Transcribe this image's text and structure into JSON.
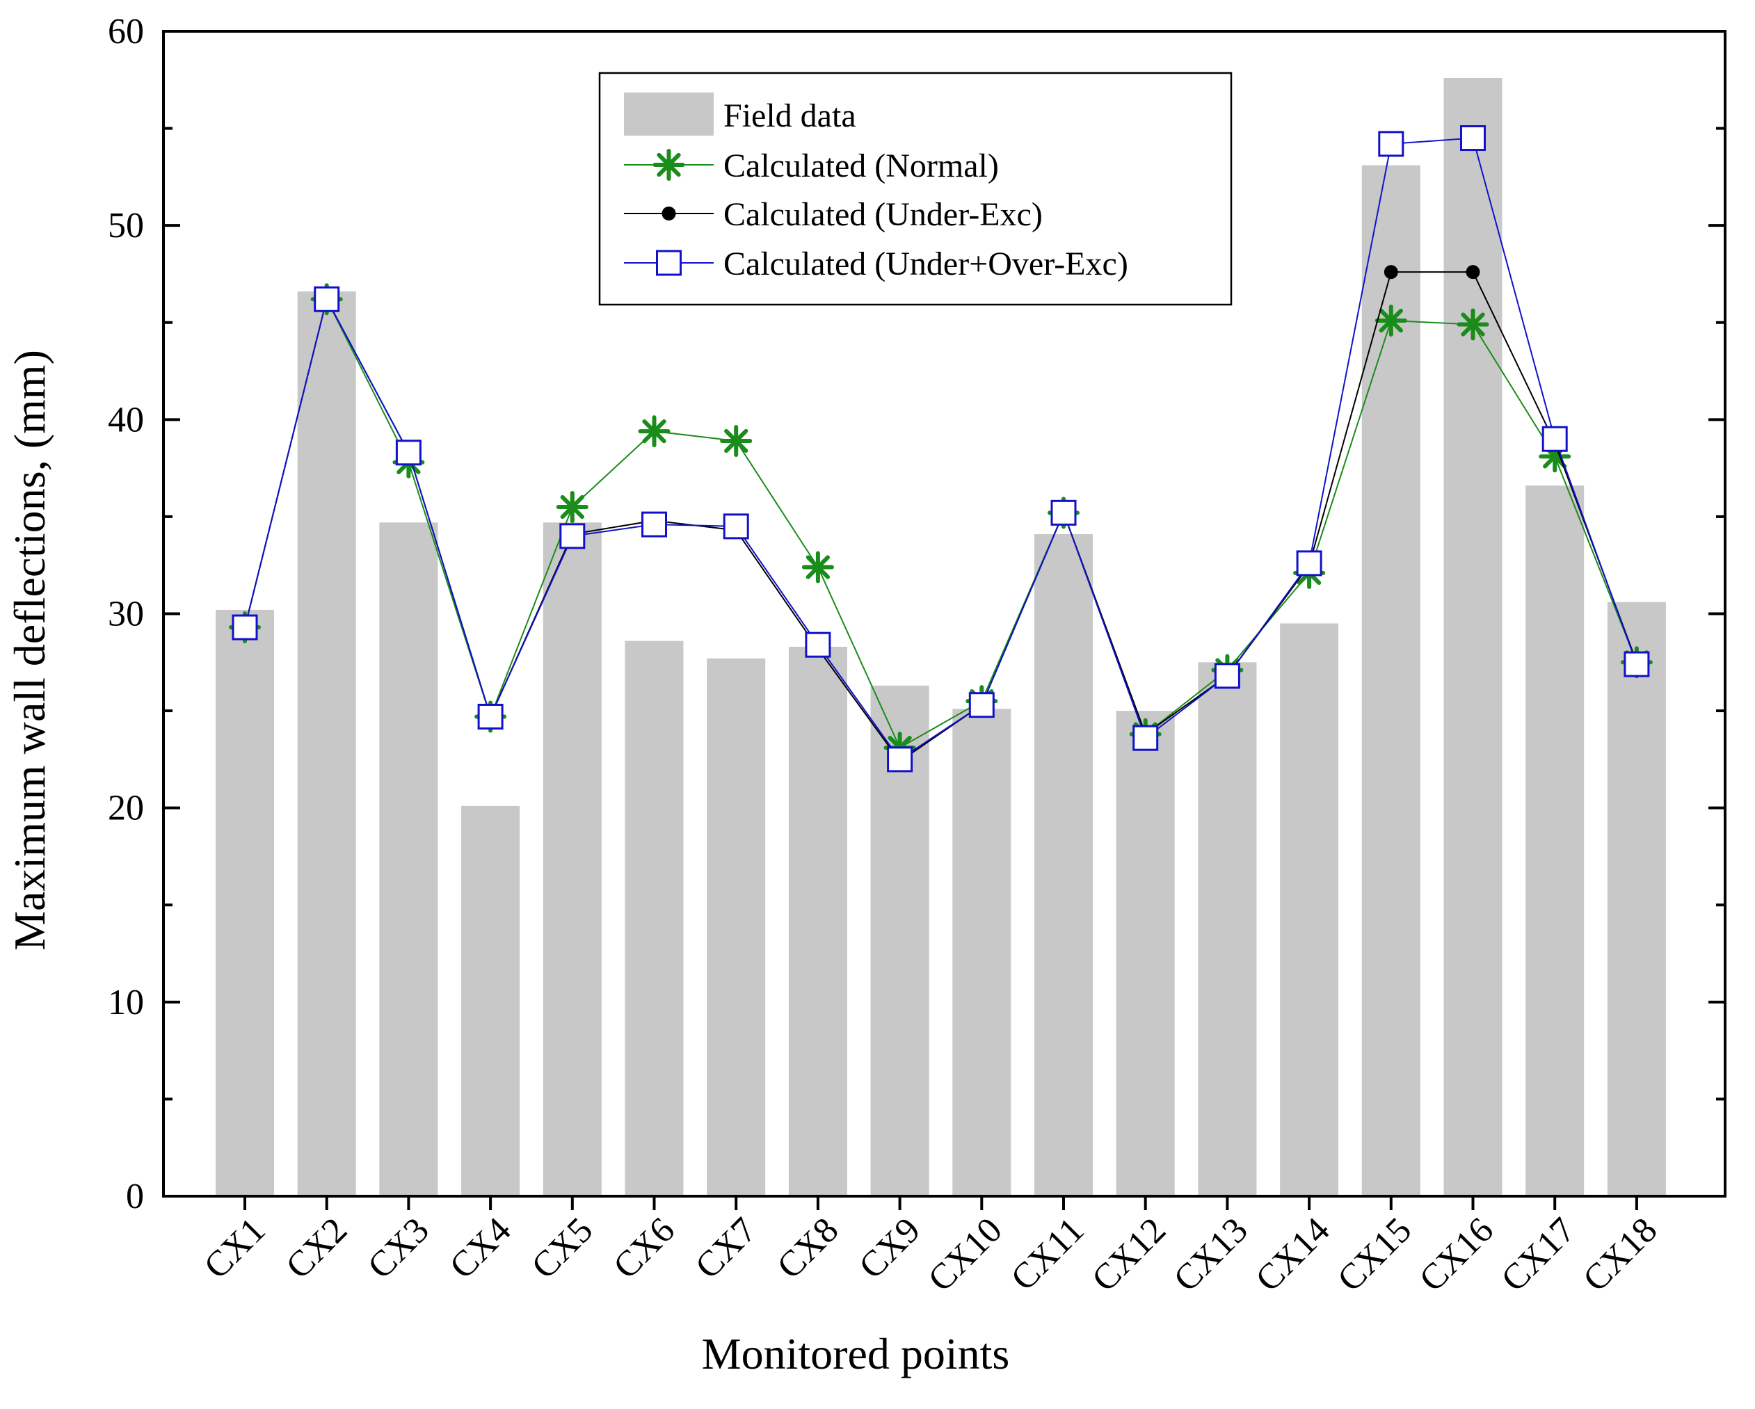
{
  "chart_data": {
    "type": "bar",
    "title": "",
    "xlabel": "Monitored points",
    "ylabel": "Maximum wall deflections, (mm)",
    "ylim": [
      0,
      60
    ],
    "yticks": [
      "0",
      "10",
      "20",
      "30",
      "40",
      "50",
      "60"
    ],
    "grid": false,
    "legend_position": "top-center",
    "categories": [
      "CX1",
      "CX2",
      "CX3",
      "CX4",
      "CX5",
      "CX6",
      "CX7",
      "CX8",
      "CX9",
      "CX10",
      "CX11",
      "CX12",
      "CX13",
      "CX14",
      "CX15",
      "CX16",
      "CX17",
      "CX18"
    ],
    "series": [
      {
        "name": "Field data",
        "kind": "bar",
        "color": "#c8c8c8",
        "values": [
          30.2,
          46.6,
          34.7,
          20.1,
          34.7,
          28.6,
          27.7,
          28.3,
          26.3,
          25.1,
          34.1,
          25.0,
          27.5,
          29.5,
          53.1,
          57.6,
          36.6,
          30.6
        ]
      },
      {
        "name": "Calculated (Normal)",
        "kind": "line",
        "marker": "asterisk",
        "color": "#1a8c1a",
        "values": [
          29.3,
          46.2,
          37.8,
          24.7,
          35.5,
          39.4,
          38.9,
          32.4,
          23.1,
          25.5,
          35.2,
          23.8,
          27.1,
          32.1,
          45.1,
          44.9,
          38.1,
          27.5
        ]
      },
      {
        "name": "Calculated (Under-Exc)",
        "kind": "line",
        "marker": "dot",
        "color": "#000000",
        "values": [
          29.3,
          46.2,
          38.3,
          24.7,
          34.1,
          34.8,
          34.3,
          28.2,
          22.4,
          25.3,
          35.2,
          23.8,
          26.8,
          32.5,
          47.6,
          47.6,
          38.8,
          27.5
        ]
      },
      {
        "name": "Calculated (Under+Over-Exc)",
        "kind": "line",
        "marker": "open-square",
        "color": "#1111cc",
        "values": [
          29.3,
          46.2,
          38.3,
          24.7,
          34.0,
          34.6,
          34.5,
          28.4,
          22.5,
          25.3,
          35.2,
          23.6,
          26.8,
          32.6,
          54.2,
          54.5,
          39.0,
          27.4
        ]
      }
    ]
  }
}
